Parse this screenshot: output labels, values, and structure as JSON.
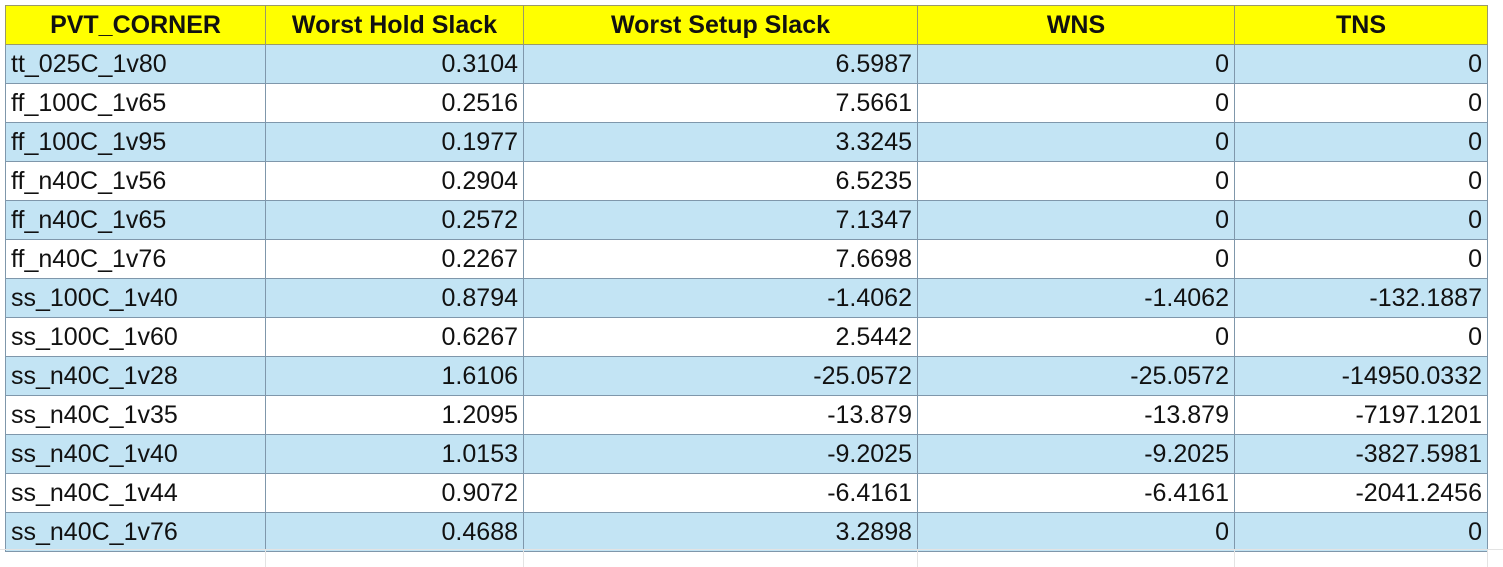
{
  "table": {
    "headers": [
      "PVT_CORNER",
      "Worst Hold Slack",
      "Worst Setup Slack",
      "WNS",
      "TNS"
    ],
    "rows": [
      [
        "tt_025C_1v80",
        "0.3104",
        "6.5987",
        "0",
        "0"
      ],
      [
        "ff_100C_1v65",
        "0.2516",
        "7.5661",
        "0",
        "0"
      ],
      [
        "ff_100C_1v95",
        "0.1977",
        "3.3245",
        "0",
        "0"
      ],
      [
        "ff_n40C_1v56",
        "0.2904",
        "6.5235",
        "0",
        "0"
      ],
      [
        "ff_n40C_1v65",
        "0.2572",
        "7.1347",
        "0",
        "0"
      ],
      [
        "ff_n40C_1v76",
        "0.2267",
        "7.6698",
        "0",
        "0"
      ],
      [
        "ss_100C_1v40",
        "0.8794",
        "-1.4062",
        "-1.4062",
        "-132.1887"
      ],
      [
        "ss_100C_1v60",
        "0.6267",
        "2.5442",
        "0",
        "0"
      ],
      [
        "ss_n40C_1v28",
        "1.6106",
        "-25.0572",
        "-25.0572",
        "-14950.0332"
      ],
      [
        "ss_n40C_1v35",
        "1.2095",
        "-13.879",
        "-13.879",
        "-7197.1201"
      ],
      [
        "ss_n40C_1v40",
        "1.0153",
        "-9.2025",
        "-9.2025",
        "-3827.5981"
      ],
      [
        "ss_n40C_1v44",
        "0.9072",
        "-6.4161",
        "-6.4161",
        "-2041.2456"
      ],
      [
        "ss_n40C_1v76",
        "0.4688",
        "3.2898",
        "0",
        "0"
      ]
    ]
  },
  "colors": {
    "header_fill": "#ffff00",
    "band_fill": "#c3e4f4",
    "plain_fill": "#ffffff",
    "border": "#7f97ab"
  }
}
